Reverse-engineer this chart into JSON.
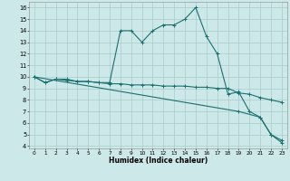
{
  "xlabel": "Humidex (Indice chaleur)",
  "background_color": "#cce8e8",
  "grid_color": "#aacccc",
  "line_color": "#1a7070",
  "xlim": [
    -0.5,
    23.5
  ],
  "ylim": [
    3.8,
    16.5
  ],
  "yticks": [
    4,
    5,
    6,
    7,
    8,
    9,
    10,
    11,
    12,
    13,
    14,
    15,
    16
  ],
  "xticks": [
    0,
    1,
    2,
    3,
    4,
    5,
    6,
    7,
    8,
    9,
    10,
    11,
    12,
    13,
    14,
    15,
    16,
    17,
    18,
    19,
    20,
    21,
    22,
    23
  ],
  "series1_x": [
    0,
    1,
    2,
    3,
    4,
    5,
    6,
    7,
    8,
    9,
    10,
    11,
    12,
    13,
    14,
    15,
    16,
    17,
    18,
    19,
    20,
    21,
    22,
    23
  ],
  "series1_y": [
    10.0,
    9.5,
    9.8,
    9.8,
    9.6,
    9.6,
    9.5,
    9.5,
    14.0,
    14.0,
    13.0,
    14.0,
    14.5,
    14.5,
    15.0,
    16.0,
    13.5,
    12.0,
    8.5,
    8.7,
    7.0,
    6.5,
    5.0,
    4.5
  ],
  "series2_x": [
    0,
    1,
    2,
    3,
    4,
    5,
    6,
    7,
    8,
    9,
    10,
    11,
    12,
    13,
    14,
    15,
    16,
    17,
    18,
    19,
    20,
    21,
    22,
    23
  ],
  "series2_y": [
    10.0,
    9.5,
    9.8,
    9.7,
    9.6,
    9.6,
    9.5,
    9.4,
    9.4,
    9.3,
    9.3,
    9.3,
    9.2,
    9.2,
    9.2,
    9.1,
    9.1,
    9.0,
    9.0,
    8.6,
    8.5,
    8.2,
    8.0,
    7.8
  ],
  "series3_x": [
    0,
    19,
    21,
    22,
    23
  ],
  "series3_y": [
    10.0,
    7.0,
    6.5,
    5.0,
    4.3
  ]
}
